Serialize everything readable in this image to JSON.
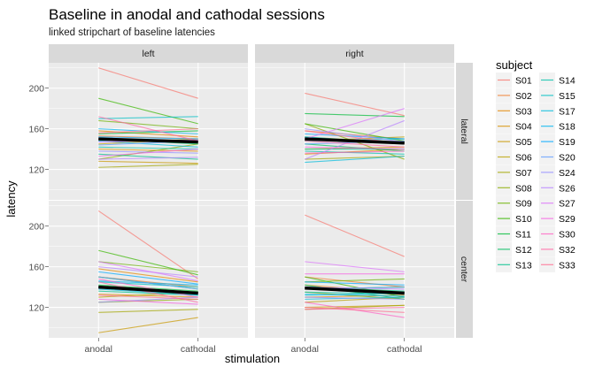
{
  "chart_data": {
    "type": "line",
    "title": "Baseline in anodal and cathodal sessions",
    "subtitle": "linked stripchart of baseline latencies",
    "xlabel": "stimulation",
    "ylabel": "latency",
    "x_categories": [
      "anodal",
      "cathodal"
    ],
    "y_ticks": [
      120,
      160,
      200
    ],
    "ylim": [
      90,
      225
    ],
    "columns": [
      "left",
      "right"
    ],
    "rows": [
      "lateral",
      "center"
    ],
    "legend_title": "subject",
    "legend_position": "right",
    "grid": true,
    "subjects": [
      {
        "name": "S01",
        "color": "#F8766D"
      },
      {
        "name": "S02",
        "color": "#F07F31"
      },
      {
        "name": "S03",
        "color": "#E58700"
      },
      {
        "name": "S04",
        "color": "#D79000"
      },
      {
        "name": "S05",
        "color": "#C99800"
      },
      {
        "name": "S06",
        "color": "#B9A000"
      },
      {
        "name": "S07",
        "color": "#A3A500"
      },
      {
        "name": "S08",
        "color": "#8BAB00"
      },
      {
        "name": "S09",
        "color": "#6BB100"
      },
      {
        "name": "S10",
        "color": "#39B600"
      },
      {
        "name": "S11",
        "color": "#00BA38"
      },
      {
        "name": "S12",
        "color": "#00BD5F"
      },
      {
        "name": "S13",
        "color": "#00C08B"
      },
      {
        "name": "S14",
        "color": "#00C1A9"
      },
      {
        "name": "S15",
        "color": "#00BFC4"
      },
      {
        "name": "S17",
        "color": "#00BBDC"
      },
      {
        "name": "S18",
        "color": "#00B4F0"
      },
      {
        "name": "S19",
        "color": "#00A9FF"
      },
      {
        "name": "S20",
        "color": "#619CFF"
      },
      {
        "name": "S24",
        "color": "#9590FF"
      },
      {
        "name": "S26",
        "color": "#B983FF"
      },
      {
        "name": "S27",
        "color": "#DB72FB"
      },
      {
        "name": "S29",
        "color": "#F564E3"
      },
      {
        "name": "S30",
        "color": "#FF61C3"
      },
      {
        "name": "S32",
        "color": "#FF67A4"
      },
      {
        "name": "S33",
        "color": "#FF6C91"
      }
    ],
    "panels": [
      {
        "column": "left",
        "row": "lateral",
        "mean": [
          150,
          147
        ],
        "values": [
          [
            220,
            190
          ],
          [
            153,
            150
          ],
          [
            158,
            152
          ],
          [
            140,
            138
          ],
          [
            128,
            126
          ],
          [
            145,
            150
          ],
          [
            122,
            125
          ],
          [
            130,
            145
          ],
          [
            168,
            160
          ],
          [
            190,
            165
          ],
          [
            155,
            158
          ],
          [
            150,
            145
          ],
          [
            135,
            130
          ],
          [
            142,
            140
          ],
          [
            170,
            172
          ],
          [
            148,
            142
          ],
          [
            160,
            155
          ],
          [
            152,
            150
          ],
          [
            144,
            148
          ],
          [
            138,
            136
          ],
          [
            130,
            132
          ],
          [
            147,
            149
          ],
          [
            133,
            140
          ],
          [
            150,
            147
          ],
          [
            172,
            148
          ],
          [
            156,
            160
          ]
        ]
      },
      {
        "column": "right",
        "row": "lateral",
        "mean": [
          150,
          146
        ],
        "values": [
          [
            195,
            173
          ],
          [
            158,
            150
          ],
          [
            150,
            145
          ],
          [
            135,
            140
          ],
          [
            140,
            142
          ],
          [
            148,
            152
          ],
          [
            130,
            133
          ],
          [
            165,
            130
          ],
          [
            152,
            146
          ],
          [
            165,
            148
          ],
          [
            175,
            172
          ],
          [
            145,
            138
          ],
          [
            140,
            140
          ],
          [
            138,
            135
          ],
          [
            148,
            150
          ],
          [
            127,
            133
          ],
          [
            152,
            145
          ],
          [
            155,
            150
          ],
          [
            145,
            148
          ],
          [
            160,
            147
          ],
          [
            130,
            168
          ],
          [
            150,
            180
          ],
          [
            142,
            140
          ],
          [
            136,
            138
          ],
          [
            148,
            142
          ],
          [
            158,
            145
          ]
        ]
      },
      {
        "column": "left",
        "row": "center",
        "mean": [
          140,
          134
        ],
        "values": [
          [
            215,
            148
          ],
          [
            150,
            140
          ],
          [
            158,
            145
          ],
          [
            133,
            130
          ],
          [
            95,
            110
          ],
          [
            130,
            135
          ],
          [
            115,
            118
          ],
          [
            125,
            128
          ],
          [
            165,
            155
          ],
          [
            176,
            152
          ],
          [
            142,
            136
          ],
          [
            150,
            138
          ],
          [
            136,
            132
          ],
          [
            140,
            134
          ],
          [
            145,
            140
          ],
          [
            138,
            132
          ],
          [
            146,
            142
          ],
          [
            155,
            143
          ],
          [
            150,
            138
          ],
          [
            125,
            130
          ],
          [
            160,
            150
          ],
          [
            165,
            146
          ],
          [
            128,
            123
          ],
          [
            148,
            130
          ],
          [
            145,
            125
          ],
          [
            132,
            128
          ]
        ]
      },
      {
        "column": "right",
        "row": "center",
        "mean": [
          139,
          134
        ],
        "values": [
          [
            211,
            170
          ],
          [
            150,
            140
          ],
          [
            142,
            135
          ],
          [
            130,
            132
          ],
          [
            120,
            122
          ],
          [
            125,
            130
          ],
          [
            118,
            122
          ],
          [
            135,
            128
          ],
          [
            145,
            148
          ],
          [
            150,
            130
          ],
          [
            138,
            140
          ],
          [
            142,
            128
          ],
          [
            140,
            136
          ],
          [
            135,
            133
          ],
          [
            132,
            134
          ],
          [
            128,
            130
          ],
          [
            133,
            131
          ],
          [
            145,
            142
          ],
          [
            138,
            140
          ],
          [
            130,
            128
          ],
          [
            140,
            138
          ],
          [
            165,
            155
          ],
          [
            153,
            153
          ],
          [
            125,
            110
          ],
          [
            118,
            120
          ],
          [
            120,
            115
          ]
        ]
      }
    ]
  }
}
